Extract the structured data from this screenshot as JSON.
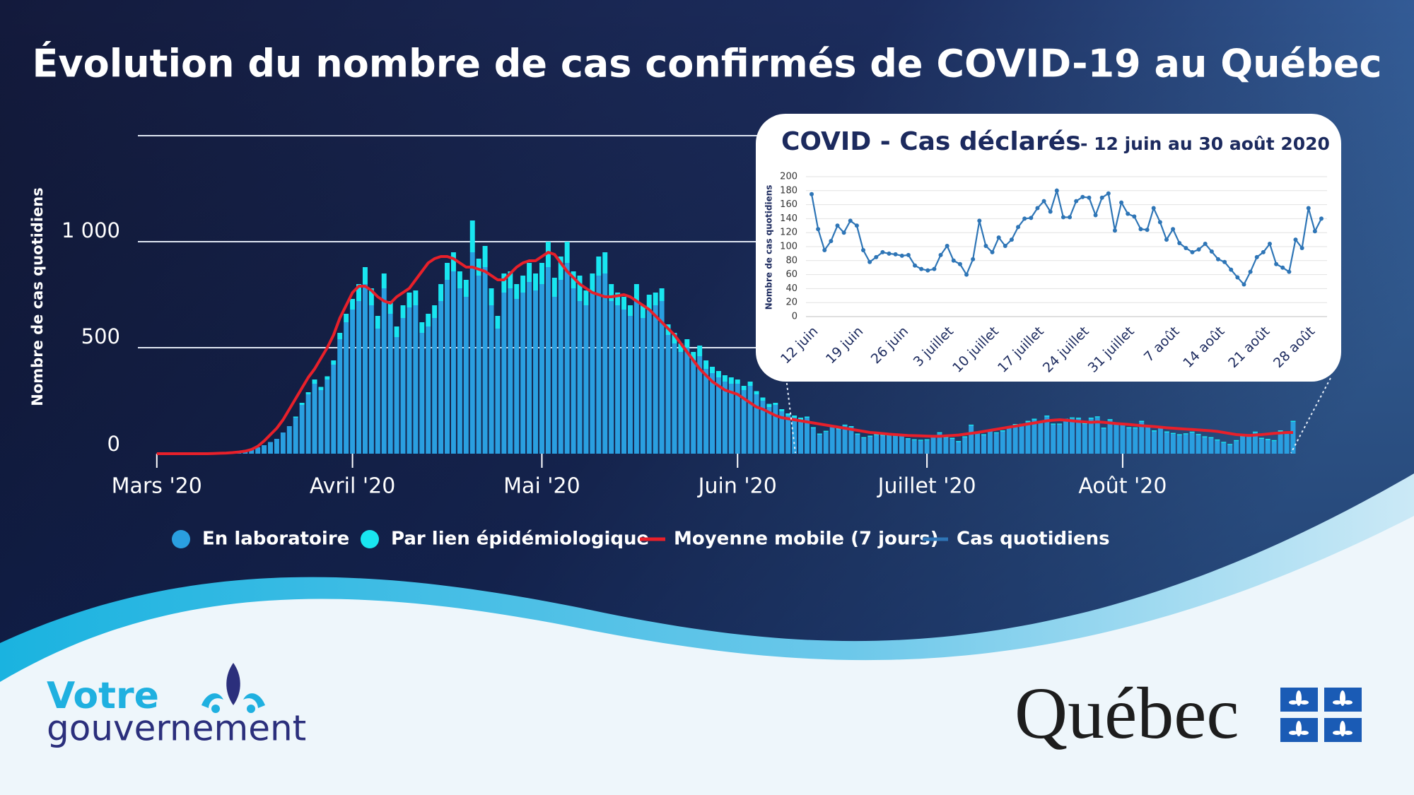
{
  "chart_data": [
    {
      "type": "bar",
      "title": "Évolution du nombre de cas confirmés de COVID-19 au Québec",
      "y_label": "Nombre de cas quotidiens",
      "stacked": true,
      "x": [
        0,
        1,
        2,
        3,
        4,
        5,
        6,
        7,
        8,
        9,
        10,
        11,
        12,
        13,
        14,
        15,
        16,
        17,
        18,
        19,
        20,
        21,
        22,
        23,
        24,
        25,
        26,
        27,
        28,
        29,
        30,
        31,
        32,
        33,
        34,
        35,
        36,
        37,
        38,
        39,
        40,
        41,
        42,
        43,
        44,
        45,
        46,
        47,
        48,
        49,
        50,
        51,
        52,
        53,
        54,
        55,
        56,
        57,
        58,
        59,
        60,
        61,
        62,
        63,
        64,
        65,
        66,
        67,
        68,
        69,
        70,
        71,
        72,
        73,
        74,
        75,
        76,
        77,
        78,
        79,
        80,
        81,
        82,
        83,
        84,
        85,
        86,
        87,
        88,
        89,
        90,
        91,
        92,
        93,
        94,
        95,
        96,
        97,
        98,
        99,
        100,
        101,
        102,
        103,
        104,
        105,
        106,
        107,
        108,
        109,
        110,
        111,
        112,
        113,
        114,
        115,
        116,
        117,
        118,
        119,
        120,
        121,
        122,
        123,
        124,
        125,
        126,
        127,
        128,
        129,
        130,
        131,
        132,
        133,
        134,
        135,
        136,
        137,
        138,
        139,
        140,
        141,
        142,
        143,
        144,
        145,
        146,
        147,
        148,
        149,
        150,
        151,
        152,
        153,
        154,
        155,
        156,
        157,
        158,
        159,
        160,
        161,
        162,
        163,
        164,
        165,
        166,
        167,
        168,
        169,
        170,
        171,
        172,
        173,
        174,
        175,
        176,
        177,
        178,
        179,
        180
      ],
      "xlim": [
        -3,
        180
      ],
      "xticks": [
        {
          "value": 0,
          "label": "Mars '20"
        },
        {
          "value": 31,
          "label": "Avril '20"
        },
        {
          "value": 61,
          "label": "Mai '20"
        },
        {
          "value": 92,
          "label": "Juin '20"
        },
        {
          "value": 122,
          "label": "Juillet '20"
        },
        {
          "value": 153,
          "label": "Août '20"
        }
      ],
      "ylim": [
        0,
        1500
      ],
      "yticks": [
        0,
        500,
        {
          "value": 1000,
          "label": "1 000"
        }
      ],
      "grid": true,
      "series": [
        {
          "name": "En laboratoire",
          "type": "bar",
          "color": "#2a9fe0",
          "values": [
            0,
            0,
            0,
            1,
            1,
            2,
            2,
            3,
            4,
            5,
            7,
            8,
            10,
            13,
            17,
            22,
            30,
            40,
            55,
            70,
            100,
            130,
            170,
            230,
            280,
            330,
            300,
            350,
            420,
            540,
            620,
            680,
            720,
            800,
            700,
            590,
            780,
            660,
            550,
            640,
            690,
            700,
            570,
            600,
            640,
            720,
            820,
            860,
            780,
            740,
            950,
            840,
            880,
            700,
            590,
            760,
            780,
            730,
            760,
            810,
            770,
            800,
            880,
            740,
            820,
            900,
            780,
            720,
            700,
            760,
            840,
            850,
            720,
            700,
            680,
            650,
            720,
            640,
            680,
            700,
            720,
            560,
            520,
            480,
            500,
            440,
            460,
            400,
            380,
            360,
            340,
            330,
            330,
            300,
            320,
            280,
            250,
            220,
            230,
            200,
            180,
            170,
            160,
            170,
            120,
            90,
            103,
            125,
            115,
            132,
            125,
            90,
            73,
            80,
            87,
            85,
            84,
            82,
            83,
            68,
            63,
            61,
            63,
            83,
            96,
            75,
            70,
            55,
            77,
            132,
            96,
            87,
            108,
            96,
            105,
            123,
            135,
            136,
            150,
            160,
            145,
            175,
            137,
            137,
            160,
            166,
            165,
            140,
            165,
            171,
            118,
            158,
            142,
            138,
            120,
            119,
            150,
            130,
            105,
            120,
            100,
            93,
            87,
            91,
            99,
            88,
            77,
            73,
            62,
            51,
            41,
            59,
            80,
            87,
            99,
            70,
            65,
            59,
            105,
            93,
            150
          ]
        },
        {
          "name": "Par lien épidémiologique",
          "type": "bar",
          "color": "#19e6f0",
          "values": [
            0,
            0,
            0,
            0,
            0,
            0,
            0,
            0,
            0,
            0,
            0,
            0,
            0,
            0,
            0,
            0,
            0,
            0,
            0,
            0,
            0,
            0,
            5,
            10,
            10,
            20,
            15,
            15,
            20,
            30,
            40,
            50,
            80,
            80,
            80,
            60,
            70,
            60,
            50,
            60,
            70,
            70,
            50,
            60,
            60,
            80,
            80,
            90,
            80,
            80,
            150,
            80,
            100,
            80,
            60,
            90,
            80,
            70,
            80,
            90,
            80,
            100,
            120,
            90,
            110,
            100,
            80,
            120,
            70,
            90,
            90,
            100,
            80,
            60,
            60,
            50,
            80,
            60,
            70,
            60,
            60,
            50,
            50,
            40,
            40,
            40,
            50,
            40,
            30,
            30,
            30,
            30,
            20,
            20,
            20,
            15,
            15,
            15,
            10,
            10,
            10,
            10,
            10,
            5,
            5,
            5,
            5,
            5,
            5,
            5,
            5,
            5,
            5,
            5,
            5,
            5,
            5,
            5,
            5,
            5,
            5,
            5,
            5,
            5,
            5,
            5,
            5,
            5,
            5,
            5,
            5,
            5,
            5,
            5,
            5,
            5,
            5,
            5,
            5,
            5,
            5,
            5,
            5,
            5,
            5,
            5,
            5,
            5,
            5,
            5,
            5,
            5,
            5,
            5,
            5,
            5,
            5,
            5,
            5,
            5,
            5,
            5,
            5,
            5,
            5,
            5,
            5,
            5,
            5,
            5,
            5,
            5,
            5,
            5,
            5,
            5,
            5,
            5,
            5,
            5,
            5
          ]
        },
        {
          "name": "Moyenne mobile (7 jours)",
          "type": "line",
          "color": "#e8202a",
          "values": [
            0,
            0,
            0,
            0,
            0,
            0,
            0,
            0,
            0,
            1,
            2,
            3,
            5,
            8,
            12,
            20,
            35,
            60,
            90,
            120,
            160,
            210,
            260,
            310,
            360,
            400,
            450,
            500,
            560,
            640,
            700,
            760,
            790,
            790,
            770,
            740,
            720,
            710,
            740,
            760,
            780,
            820,
            860,
            900,
            920,
            930,
            930,
            920,
            900,
            880,
            880,
            870,
            860,
            840,
            820,
            820,
            850,
            880,
            900,
            910,
            910,
            930,
            950,
            940,
            900,
            860,
            830,
            800,
            780,
            760,
            750,
            740,
            740,
            745,
            750,
            740,
            720,
            700,
            680,
            650,
            620,
            590,
            560,
            520,
            480,
            440,
            400,
            370,
            340,
            320,
            300,
            290,
            280,
            260,
            240,
            220,
            210,
            195,
            180,
            170,
            165,
            160,
            155,
            150,
            145,
            140,
            135,
            130,
            125,
            120,
            115,
            110,
            105,
            100,
            98,
            95,
            92,
            90,
            88,
            86,
            85,
            84,
            83,
            82,
            82,
            84,
            86,
            88,
            92,
            96,
            100,
            105,
            110,
            115,
            120,
            125,
            130,
            135,
            140,
            145,
            150,
            155,
            158,
            160,
            158,
            155,
            152,
            150,
            148,
            150,
            148,
            145,
            142,
            140,
            138,
            135,
            132,
            130,
            128,
            125,
            122,
            120,
            118,
            116,
            114,
            112,
            110,
            108,
            105,
            100,
            95,
            90,
            88,
            86,
            88,
            90,
            93,
            96,
            98,
            100,
            100
          ]
        }
      ]
    },
    {
      "type": "line",
      "title": "COVID - Cas déclarés",
      "subtitle": "- 12 juin au 30 août 2020",
      "y_label": "Nombre de cas quotidiens",
      "categories": [
        "12 juin",
        null,
        null,
        null,
        null,
        null,
        null,
        "19 juin",
        null,
        null,
        null,
        null,
        null,
        null,
        "26 juin",
        null,
        null,
        null,
        null,
        null,
        null,
        "3 juillet",
        null,
        null,
        null,
        null,
        null,
        null,
        "10 juillet",
        null,
        null,
        null,
        null,
        null,
        null,
        "17 juillet",
        null,
        null,
        null,
        null,
        null,
        null,
        "24 juillet",
        null,
        null,
        null,
        null,
        null,
        null,
        "31 juillet",
        null,
        null,
        null,
        null,
        null,
        null,
        "7 août",
        null,
        null,
        null,
        null,
        null,
        null,
        "14 août",
        null,
        null,
        null,
        null,
        null,
        null,
        "21 août",
        null,
        null,
        null,
        null,
        null,
        null,
        "28 août",
        null,
        null
      ],
      "ylim": [
        0,
        200
      ],
      "yticks": [
        0,
        20,
        40,
        60,
        80,
        100,
        120,
        140,
        160,
        180,
        200
      ],
      "grid": true,
      "series": [
        {
          "name": "Cas quotidiens",
          "color": "#2e75b6",
          "values": [
            175,
            125,
            95,
            108,
            130,
            120,
            137,
            130,
            95,
            78,
            85,
            92,
            90,
            89,
            87,
            88,
            73,
            68,
            66,
            68,
            88,
            101,
            80,
            75,
            60,
            82,
            137,
            101,
            92,
            113,
            101,
            110,
            128,
            140,
            141,
            155,
            165,
            150,
            180,
            142,
            142,
            165,
            171,
            170,
            145,
            170,
            176,
            123,
            163,
            147,
            143,
            125,
            124,
            155,
            135,
            110,
            125,
            105,
            98,
            92,
            96,
            104,
            93,
            82,
            78,
            67,
            56,
            46,
            64,
            85,
            92,
            104,
            75,
            70,
            64,
            110,
            98,
            155,
            122,
            140
          ]
        }
      ]
    }
  ],
  "logos": {
    "left": [
      "Votre",
      "gouvernement"
    ],
    "right": "Québec"
  }
}
